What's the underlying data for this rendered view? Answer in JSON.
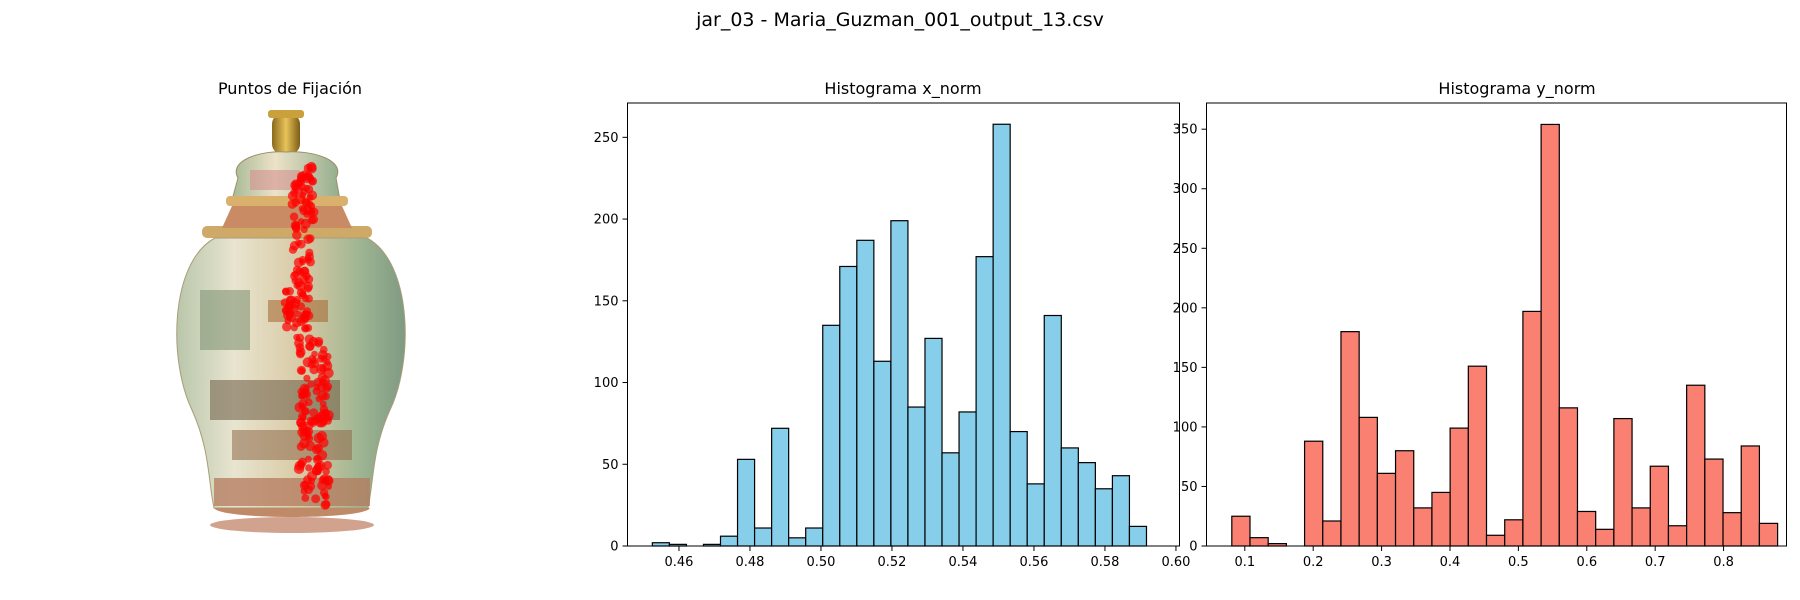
{
  "figure": {
    "suptitle": "jar_03 - Maria_Guzman_001_output_13.csv"
  },
  "chart_data": [
    {
      "type": "scatter",
      "title": "Puntos de Fijación",
      "background": "vase-image",
      "axes_visible": false,
      "marker_color": "#ff0000"
    },
    {
      "type": "bar",
      "title": "Histograma x_norm",
      "xlabel": "",
      "ylabel": "",
      "bin_start": 0.4525,
      "bin_width": 0.0048,
      "values": [
        2,
        1,
        0,
        1,
        6,
        53,
        11,
        72,
        5,
        11,
        135,
        171,
        187,
        113,
        199,
        85,
        127,
        57,
        82,
        177,
        258,
        70,
        38,
        141,
        60,
        51,
        35,
        43,
        12
      ],
      "xlim": [
        0.4455,
        0.601
      ],
      "ylim": [
        0,
        271
      ],
      "xticks": [
        0.46,
        0.48,
        0.5,
        0.52,
        0.54,
        0.56,
        0.58,
        0.6
      ],
      "xtick_labels": [
        "0.46",
        "0.48",
        "0.50",
        "0.52",
        "0.54",
        "0.56",
        "0.58",
        "0.60"
      ],
      "yticks": [
        0,
        50,
        100,
        150,
        200,
        250
      ],
      "ytick_labels": [
        "0",
        "50",
        "100",
        "150",
        "200",
        "250"
      ],
      "grid": false,
      "color": "#87ceeb",
      "edgecolor": "#000000"
    },
    {
      "type": "bar",
      "title": "Histograma y_norm",
      "xlabel": "",
      "ylabel": "",
      "bin_start": 0.081,
      "bin_width": 0.0266,
      "values": [
        25,
        7,
        2,
        0,
        88,
        21,
        180,
        108,
        61,
        80,
        32,
        45,
        99,
        151,
        9,
        22,
        197,
        354,
        116,
        29,
        14,
        107,
        32,
        67,
        17,
        135,
        73,
        28,
        84,
        19
      ],
      "xlim": [
        0.044,
        0.892
      ],
      "ylim": [
        0,
        372
      ],
      "xticks": [
        0.1,
        0.2,
        0.3,
        0.4,
        0.5,
        0.6,
        0.7,
        0.8
      ],
      "xtick_labels": [
        "0.1",
        "0.2",
        "0.3",
        "0.4",
        "0.5",
        "0.6",
        "0.7",
        "0.8"
      ],
      "yticks": [
        0,
        50,
        100,
        150,
        200,
        250,
        300,
        350
      ],
      "ytick_labels": [
        "0",
        "50",
        "100",
        "150",
        "200",
        "250",
        "300",
        "350"
      ],
      "grid": false,
      "color": "#fa8072",
      "edgecolor": "#000000"
    }
  ]
}
